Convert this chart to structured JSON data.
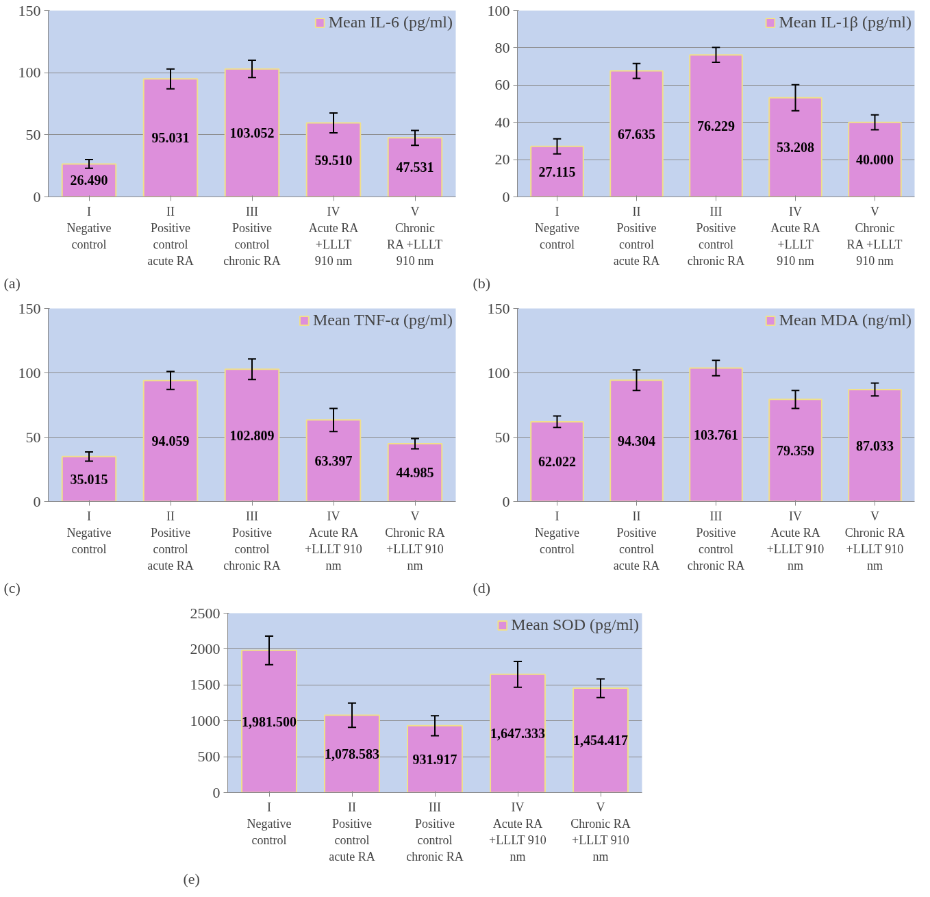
{
  "chart_data": [
    {
      "type": "bar",
      "categories": [
        "I\nNegative\ncontrol",
        "II\nPositive\ncontrol\nacute RA",
        "III\nPositive\ncontrol\nchronic RA",
        "IV\nAcute RA\n+LLLT\n910 nm",
        "V\nChronic\nRA +LLLT\n910 nm"
      ],
      "series": [
        {
          "name": "Mean IL-6 (pg/ml)",
          "color": "#dd8fdb",
          "values": [
            26.49,
            95.031,
            103.052,
            59.51,
            47.531
          ],
          "errors": [
            3.5,
            8,
            7,
            8,
            6
          ],
          "value_labels": [
            "26.490",
            "95.031",
            "103.052",
            "59.510",
            "47.531"
          ]
        }
      ],
      "ylim": [
        0,
        150
      ],
      "yticks": [
        0,
        50,
        100,
        150
      ],
      "grid": "y",
      "legend": "top right",
      "annotations": [
        "(a)"
      ]
    },
    {
      "type": "bar",
      "categories": [
        "I\nNegative\ncontrol",
        "II\nPositive\ncontrol\nacute RA",
        "III\nPositive\ncontrol\nchronic RA",
        "IV\nAcute RA\n+LLLT\n910 nm",
        "V\nChronic\nRA +LLLT\n910 nm"
      ],
      "series": [
        {
          "name": "Mean IL-1β (pg/ml)",
          "color": "#dd8fdb",
          "values": [
            27.115,
            67.635,
            76.229,
            53.208,
            40.0
          ],
          "errors": [
            4,
            4,
            4,
            7,
            4
          ],
          "value_labels": [
            "27.115",
            "67.635",
            "76.229",
            "53.208",
            "40.000"
          ]
        }
      ],
      "ylim": [
        0,
        100
      ],
      "yticks": [
        0,
        20,
        40,
        60,
        80,
        100
      ],
      "grid": "y",
      "legend": "top right",
      "annotations": [
        "(b)"
      ]
    },
    {
      "type": "bar",
      "categories": [
        "I\nNegative\ncontrol",
        "II\nPositive\ncontrol\nacute RA",
        "III\nPositive\ncontrol\nchronic RA",
        "IV\nAcute RA\n+LLLT 910\nnm",
        "V\nChronic RA\n+LLLT 910\nnm"
      ],
      "series": [
        {
          "name": "Mean TNF-α (pg/ml)",
          "color": "#dd8fdb",
          "values": [
            35.015,
            94.059,
            102.809,
            63.397,
            44.985
          ],
          "errors": [
            3.6,
            7,
            8,
            9,
            4
          ],
          "value_labels": [
            "35.015",
            "94.059",
            "102.809",
            "63.397",
            "44.985"
          ]
        }
      ],
      "ylim": [
        0,
        150
      ],
      "yticks": [
        0,
        50,
        100,
        150
      ],
      "grid": "y",
      "legend": "top right",
      "annotations": [
        "(c)"
      ]
    },
    {
      "type": "bar",
      "categories": [
        "I\nNegative\ncontrol",
        "II\nPositive\ncontrol\nacute RA",
        "III\nPositive\ncontrol\nchronic RA",
        "IV\nAcute RA\n+LLLT 910\nnm",
        "V\nChronic RA\n+LLLT 910\nnm"
      ],
      "series": [
        {
          "name": "Mean MDA (ng/ml)",
          "color": "#dd8fdb",
          "values": [
            62.022,
            94.304,
            103.761,
            79.359,
            87.033
          ],
          "errors": [
            4.5,
            8,
            6,
            7,
            5
          ],
          "value_labels": [
            "62.022",
            "94.304",
            "103.761",
            "79.359",
            "87.033"
          ]
        }
      ],
      "ylim": [
        0,
        150
      ],
      "yticks": [
        0,
        50,
        100,
        150
      ],
      "grid": "y",
      "legend": "top right",
      "annotations": [
        "(d)"
      ]
    },
    {
      "type": "bar",
      "categories": [
        "I\nNegative\ncontrol",
        "II\nPositive\ncontrol\nacute RA",
        "III\nPositive\ncontrol\nchronic RA",
        "IV\nAcute RA\n+LLLT 910\nnm",
        "V\nChronic RA\n+LLLT 910\nnm"
      ],
      "series": [
        {
          "name": "Mean SOD (pg/ml)",
          "color": "#dd8fdb",
          "values": [
            1981.5,
            1078.583,
            931.917,
            1647.333,
            1454.417
          ],
          "errors": [
            200,
            170,
            140,
            180,
            130
          ],
          "value_labels": [
            "1,981.500",
            "1,078.583",
            "931.917",
            "1,647.333",
            "1,454.417"
          ]
        }
      ],
      "ylim": [
        0,
        2500
      ],
      "yticks": [
        0,
        500,
        1000,
        1500,
        2000,
        2500
      ],
      "grid": "y",
      "legend": "top right",
      "annotations": [
        "(e)"
      ]
    }
  ]
}
